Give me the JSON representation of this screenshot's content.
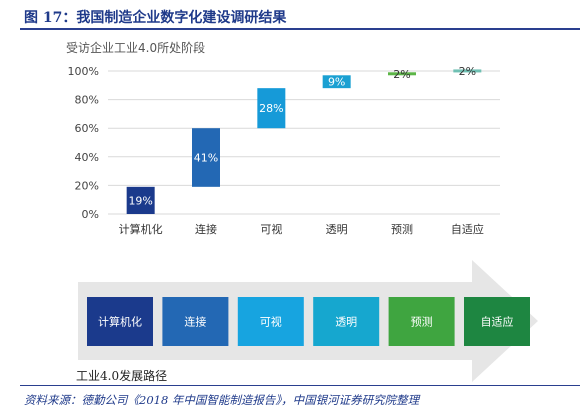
{
  "header": {
    "title": "图 17：我国制造企业数字化建设调研结果"
  },
  "chart_data": {
    "type": "bar",
    "subtitle": "受访企业工业4.0所处阶段",
    "categories": [
      "计算机化",
      "连接",
      "可视",
      "透明",
      "预测",
      "自适应"
    ],
    "values": [
      19,
      41,
      28,
      9,
      2,
      2
    ],
    "bases": [
      0,
      19,
      60,
      88,
      97,
      99
    ],
    "value_labels": [
      "19%",
      "41%",
      "28%",
      "9%",
      "2%",
      "2%"
    ],
    "colors": [
      "#1b3a8c",
      "#2368b4",
      "#169ad8",
      "#1aa0d2",
      "#5cb547",
      "#6fc0b3"
    ],
    "y_ticks": [
      "0%",
      "20%",
      "40%",
      "60%",
      "80%",
      "100%"
    ],
    "ylim": [
      0,
      100
    ],
    "grid": true
  },
  "stages": {
    "items": [
      "计算机化",
      "连接",
      "可视",
      "透明",
      "预测",
      "自适应"
    ],
    "colors": [
      "#1b3a8c",
      "#2368b4",
      "#17a4e0",
      "#16a7cf",
      "#3fa540",
      "#1e8641"
    ],
    "arrow_color": "#e6e6e6"
  },
  "footer": {
    "label": "工业4.0发展路径",
    "source": "资料来源：德勤公司《2018 年中国智能制造报告》，中国银河证券研究院整理"
  }
}
